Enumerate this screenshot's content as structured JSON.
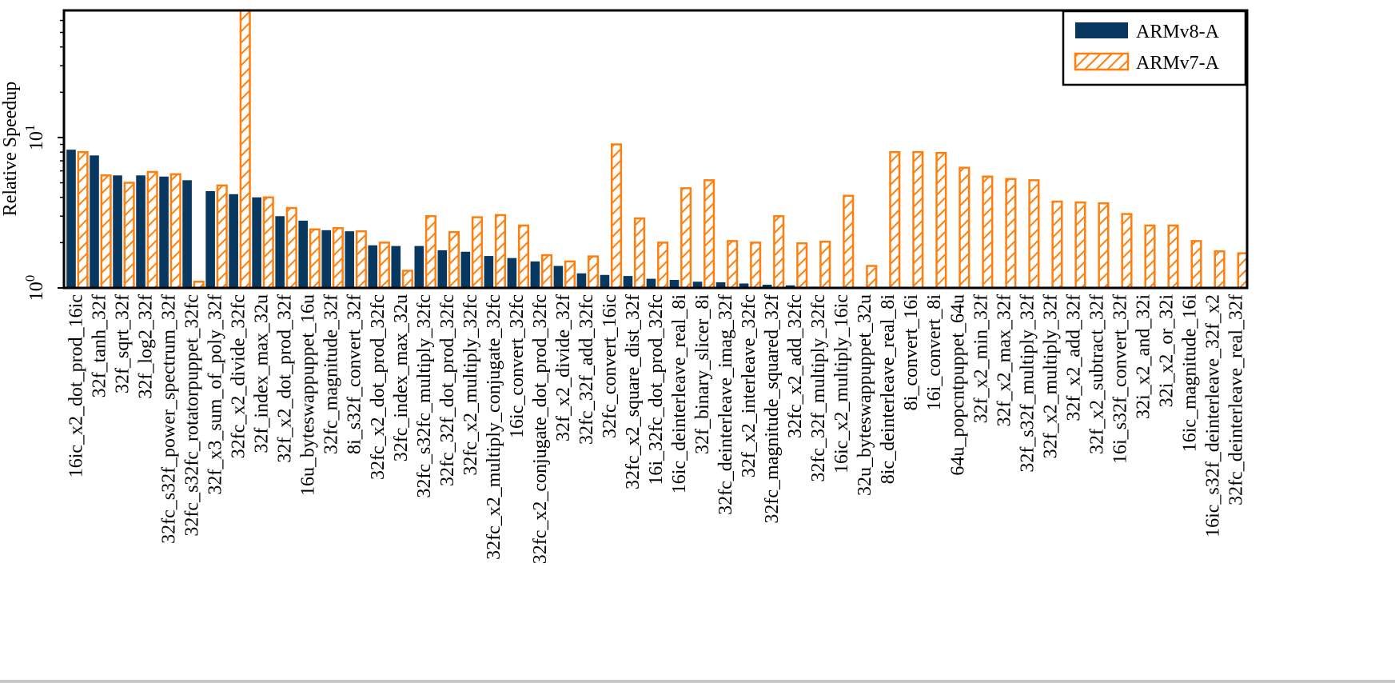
{
  "chart_data": {
    "type": "bar",
    "ylabel": "Relative Speedup",
    "yscale": "log",
    "ylim": [
      1,
      70
    ],
    "yticks": [
      {
        "value": 1,
        "base": "10",
        "exp": "0"
      },
      {
        "value": 10,
        "base": "10",
        "exp": "1"
      }
    ],
    "grid": false,
    "legend_position": "top-right",
    "categories": [
      "16ic_x2_dot_prod_16ic",
      "32f_tanh_32f",
      "32f_sqrt_32f",
      "32f_log2_32f",
      "32fc_s32f_power_spectrum_32f",
      "32fc_s32fc_rotatorpuppet_32fc",
      "32f_x3_sum_of_poly_32f",
      "32fc_x2_divide_32fc",
      "32f_index_max_32u",
      "32f_x2_dot_prod_32f",
      "16u_byteswappuppet_16u",
      "32fc_magnitude_32f",
      "8i_s32f_convert_32f",
      "32fc_x2_dot_prod_32fc",
      "32fc_index_max_32u",
      "32fc_s32fc_multiply_32fc",
      "32fc_32f_dot_prod_32fc",
      "32fc_x2_multiply_32fc",
      "32fc_x2_multiply_conjugate_32fc",
      "16ic_convert_32fc",
      "32fc_x2_conjugate_dot_prod_32fc",
      "32f_x2_divide_32f",
      "32fc_32f_add_32fc",
      "32fc_convert_16ic",
      "32fc_x2_square_dist_32f",
      "16i_32fc_dot_prod_32fc",
      "16ic_deinterleave_real_8i",
      "32f_binary_slicer_8i",
      "32fc_deinterleave_imag_32f",
      "32f_x2_interleave_32fc",
      "32fc_magnitude_squared_32f",
      "32fc_x2_add_32fc",
      "32fc_32f_multiply_32fc",
      "16ic_x2_multiply_16ic",
      "32u_byteswappuppet_32u",
      "8ic_deinterleave_real_8i",
      "8i_convert_16i",
      "16i_convert_8i",
      "64u_popcntpuppet_64u",
      "32f_x2_min_32f",
      "32f_x2_max_32f",
      "32f_s32f_multiply_32f",
      "32f_x2_multiply_32f",
      "32f_x2_add_32f",
      "32f_x2_subtract_32f",
      "16i_s32f_convert_32f",
      "32i_x2_and_32i",
      "32i_x2_or_32i",
      "16ic_magnitude_16i",
      "16ic_s32f_deinterleave_32f_x2",
      "32fc_deinterleave_real_32f"
    ],
    "series": [
      {
        "name": "ARMv8-A",
        "color": "#08375f",
        "pattern": "solid",
        "values": [
          8.3,
          7.6,
          5.6,
          5.6,
          5.5,
          5.2,
          4.4,
          4.2,
          4.0,
          3.0,
          2.8,
          2.42,
          2.38,
          1.92,
          1.9,
          1.9,
          1.78,
          1.74,
          1.63,
          1.58,
          1.5,
          1.4,
          1.25,
          1.22,
          1.2,
          1.15,
          1.13,
          1.1,
          1.09,
          1.07,
          1.05,
          1.04,
          1.02,
          1.01,
          1.0,
          1.0,
          1.0,
          1.0,
          1.0,
          1.0,
          1.0,
          1.0,
          1.0,
          1.0,
          1.0,
          1.0,
          1.0,
          1.0,
          1.0,
          1.0,
          1.0
        ]
      },
      {
        "name": "ARMv7-A",
        "color": "#ff7f0e",
        "pattern": "hatched",
        "values": [
          8.0,
          5.6,
          5.0,
          5.9,
          5.7,
          1.1,
          4.8,
          70,
          4.0,
          3.4,
          2.45,
          2.5,
          2.38,
          2.0,
          1.3,
          3.0,
          2.35,
          2.95,
          3.05,
          2.6,
          1.65,
          1.5,
          1.62,
          9.0,
          2.9,
          2.0,
          4.6,
          5.2,
          2.05,
          2.0,
          3.0,
          1.98,
          2.03,
          4.1,
          1.4,
          8.0,
          8.0,
          7.9,
          6.3,
          5.5,
          5.3,
          5.2,
          3.75,
          3.7,
          3.65,
          3.1,
          2.6,
          2.6,
          2.05,
          1.75,
          1.7
        ]
      }
    ]
  }
}
